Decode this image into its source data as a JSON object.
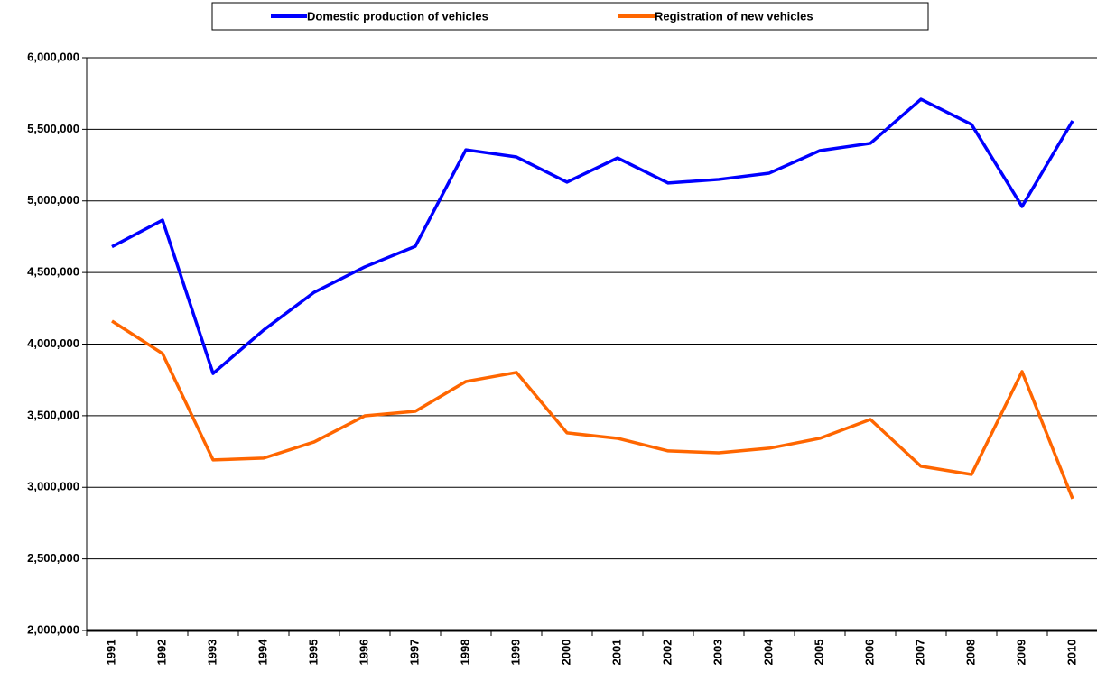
{
  "chart_data": {
    "type": "line",
    "categories": [
      "1991",
      "1992",
      "1993",
      "1994",
      "1995",
      "1996",
      "1997",
      "1998",
      "1999",
      "2000",
      "2001",
      "2002",
      "2003",
      "2004",
      "2005",
      "2006",
      "2007",
      "2008",
      "2009",
      "2010"
    ],
    "series": [
      {
        "name": "Domestic production of vehicles",
        "color": "#0000ff",
        "values": [
          4680000,
          4866000,
          3795000,
          4098000,
          4362000,
          4539000,
          4683000,
          5357000,
          5307000,
          5131000,
          5300000,
          5125000,
          5150000,
          5194000,
          5351000,
          5402000,
          5710000,
          5534000,
          4961000,
          5559000
        ]
      },
      {
        "name": "Registration of new vehicles",
        "color": "#ff6600",
        "values": [
          4161000,
          3934000,
          3191000,
          3204000,
          3317000,
          3499000,
          3531000,
          3739000,
          3802000,
          3380000,
          3342000,
          3254000,
          3241000,
          3273000,
          3342000,
          3474000,
          3147000,
          3090000,
          3808000,
          2920000
        ]
      }
    ],
    "ylim": [
      2000000,
      6000000
    ],
    "yticks": [
      {
        "value": 2000000,
        "label": "2,000,000"
      },
      {
        "value": 2500000,
        "label": "2,500,000"
      },
      {
        "value": 3000000,
        "label": "3,000,000"
      },
      {
        "value": 3500000,
        "label": "3,500,000"
      },
      {
        "value": 4000000,
        "label": "4,000,000"
      },
      {
        "value": 4500000,
        "label": "4,500,000"
      },
      {
        "value": 5000000,
        "label": "5,000,000"
      },
      {
        "value": 5500000,
        "label": "5,500,000"
      },
      {
        "value": 6000000,
        "label": "6,000,000"
      }
    ],
    "grid": true,
    "legend": "top"
  }
}
